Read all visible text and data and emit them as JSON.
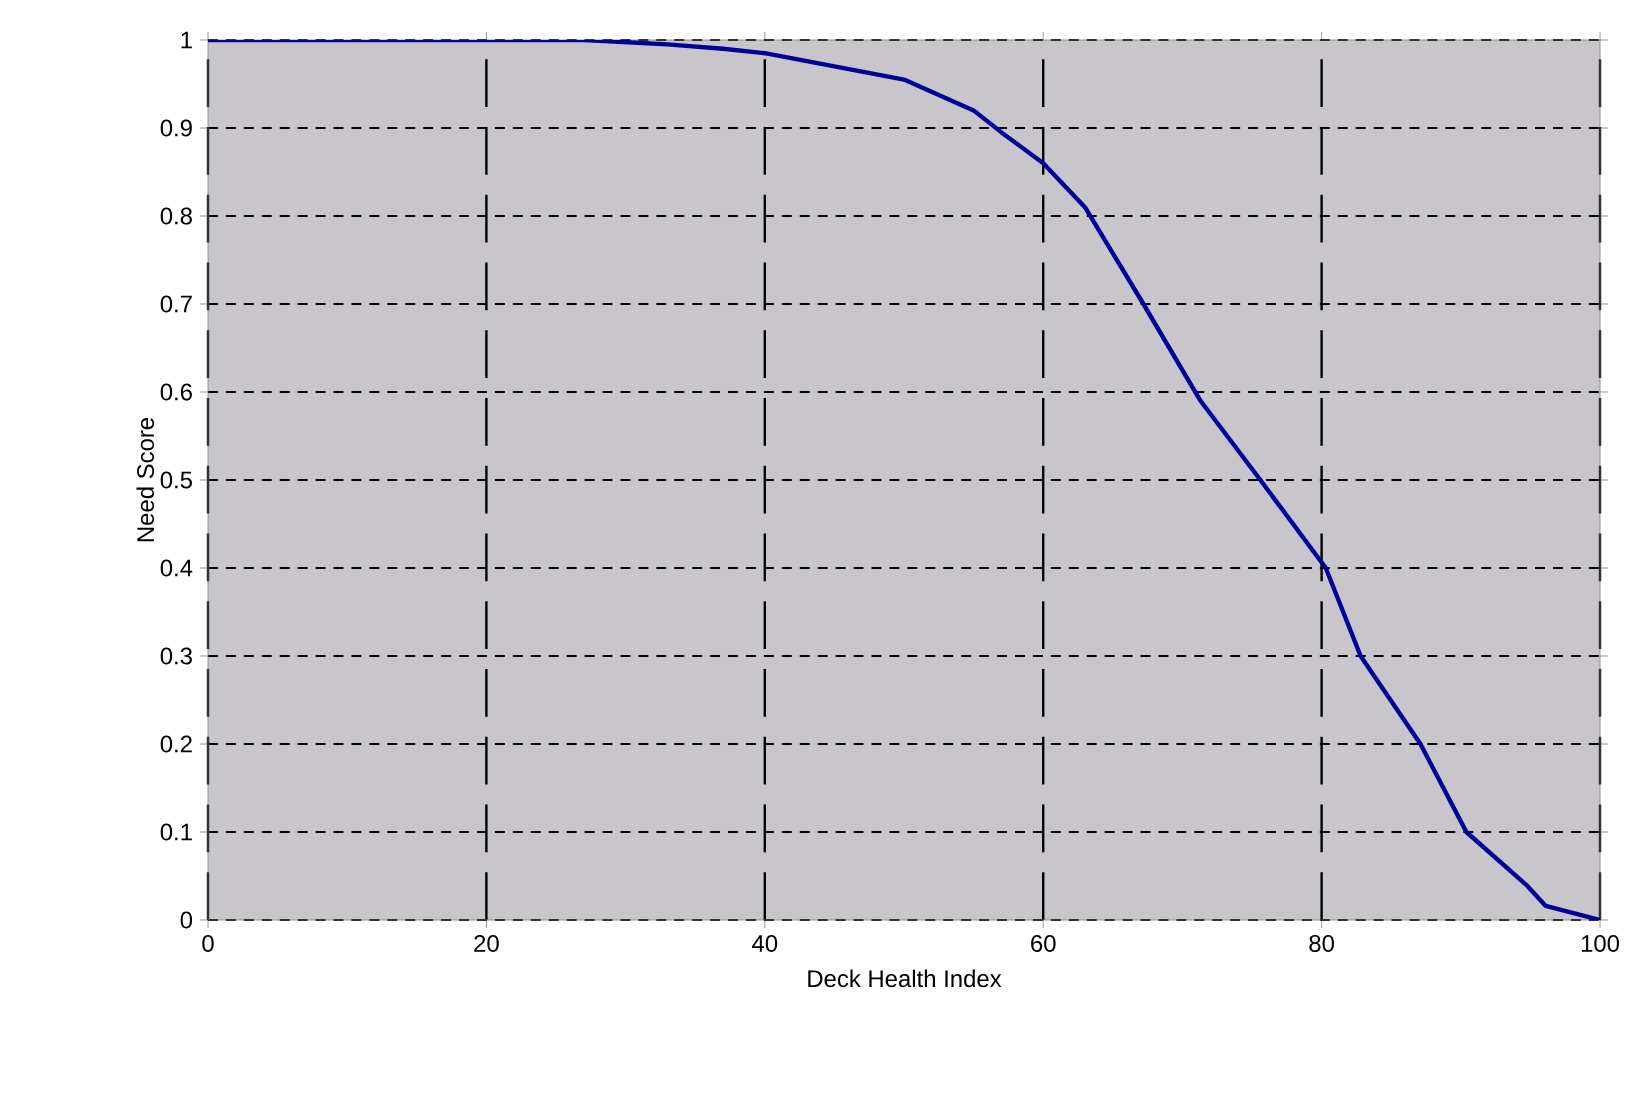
{
  "chart_data": {
    "type": "line",
    "xlabel": "Deck Health Index",
    "ylabel": "Need Score",
    "series": [
      {
        "color": "#000099",
        "x": [
          0,
          27,
          33,
          37,
          40,
          45,
          50,
          55,
          57,
          60,
          63,
          67.2,
          71.3,
          75.6,
          80.3,
          82.8,
          87.1,
          90.4,
          94.7,
          96.1,
          100
        ],
        "values": [
          1,
          1,
          0.995,
          0.99,
          0.985,
          0.97,
          0.955,
          0.92,
          0.895,
          0.86,
          0.81,
          0.7,
          0.59,
          0.5,
          0.4,
          0.3,
          0.2,
          0.1,
          0.04,
          0.016,
          0
        ]
      }
    ],
    "xlim": [
      0,
      100
    ],
    "ylim": [
      0,
      1
    ],
    "xticks": [
      0,
      20,
      40,
      60,
      80,
      100
    ],
    "yticks": [
      0,
      0.1,
      0.2,
      0.3,
      0.4,
      0.5,
      0.6,
      0.7,
      0.8,
      0.9,
      1
    ],
    "grid": true
  }
}
